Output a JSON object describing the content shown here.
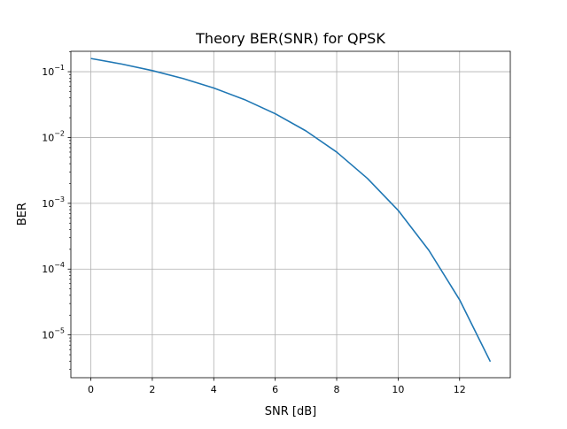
{
  "chart_data": {
    "type": "line",
    "title": "Theory BER(SNR) for QPSK",
    "xlabel": "SNR [dB]",
    "ylabel": "BER",
    "xlim": [
      -0.65,
      13.65
    ],
    "ylim_log10": [
      -5.65,
      -0.69
    ],
    "y_scale": "log",
    "grid": true,
    "x_ticks": [
      0,
      2,
      4,
      6,
      8,
      10,
      12
    ],
    "y_ticks": [
      {
        "exp": -1,
        "label": "10",
        "sup": "−1"
      },
      {
        "exp": -2,
        "label": "10",
        "sup": "−2"
      },
      {
        "exp": -3,
        "label": "10",
        "sup": "−3"
      },
      {
        "exp": -4,
        "label": "10",
        "sup": "−4"
      },
      {
        "exp": -5,
        "label": "10",
        "sup": "−5"
      }
    ],
    "series": [
      {
        "color": "#1f77b4",
        "x": [
          0,
          1,
          2,
          3,
          4,
          5,
          6,
          7,
          8,
          9,
          10,
          11,
          12,
          13
        ],
        "y": [
          0.1587,
          0.1309,
          0.104,
          0.0789,
          0.0565,
          0.0377,
          0.023,
          0.0126,
          0.00601,
          0.00239,
          0.000783,
          0.000193,
          3.42e-05,
          3.93e-06
        ]
      }
    ]
  }
}
